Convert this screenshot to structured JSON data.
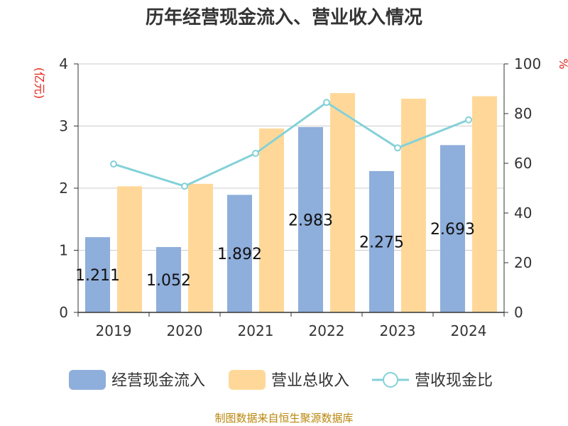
{
  "chart_data": {
    "type": "bar",
    "title": "历年经营现金流入、营业收入情况",
    "categories": [
      "2019",
      "2020",
      "2021",
      "2022",
      "2023",
      "2024"
    ],
    "left_axis": {
      "unit": "(亿元)",
      "ylim": [
        0,
        4
      ],
      "ticks": [
        "0",
        "1",
        "2",
        "3",
        "4"
      ]
    },
    "right_axis": {
      "unit": "%",
      "ylim": [
        0,
        100
      ],
      "ticks": [
        "0",
        "20",
        "40",
        "60",
        "80",
        "100"
      ]
    },
    "series": [
      {
        "name": "经营现金流入",
        "kind": "bar",
        "axis": "left",
        "color": "#8eaedb",
        "values": [
          1.211,
          1.052,
          1.892,
          2.983,
          2.275,
          2.693
        ],
        "labels": [
          "1.211",
          "1.052",
          "1.892",
          "2.983",
          "2.275",
          "2.693"
        ]
      },
      {
        "name": "营业总收入",
        "kind": "bar",
        "axis": "left",
        "color": "#ffd899",
        "values": [
          2.03,
          2.07,
          2.96,
          3.53,
          3.44,
          3.48
        ]
      },
      {
        "name": "营收现金比",
        "kind": "line",
        "axis": "right",
        "color": "#84d1d8",
        "values": [
          59.7,
          50.8,
          64.0,
          84.5,
          66.2,
          77.5
        ]
      }
    ],
    "grid": true,
    "legend_position": "bottom"
  },
  "source": "制图数据来自恒生聚源数据库"
}
